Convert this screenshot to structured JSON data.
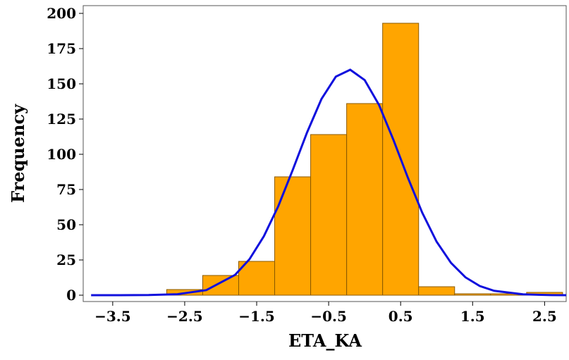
{
  "chart_data": {
    "type": "histogram",
    "xlabel": "ETA_KA",
    "ylabel": "Frequency",
    "bins": [
      -2.75,
      -2.25,
      -1.75,
      -1.25,
      -0.75,
      -0.25,
      0.25,
      0.75,
      1.25,
      1.75,
      2.25,
      2.75
    ],
    "values": [
      4,
      14,
      24,
      84,
      114,
      136,
      193,
      6,
      1,
      1,
      2
    ],
    "color": "#ffa500",
    "edgecolor": "#8a5a00",
    "curve": {
      "color": "#1010dd",
      "x": [
        -3.8,
        -3.4,
        -3.0,
        -2.6,
        -2.2,
        -1.8,
        -1.6,
        -1.4,
        -1.2,
        -1.0,
        -0.8,
        -0.6,
        -0.4,
        -0.2,
        0.0,
        0.2,
        0.4,
        0.6,
        0.8,
        1.0,
        1.2,
        1.4,
        1.6,
        1.8,
        2.2,
        2.6,
        2.8
      ],
      "values": [
        0.0,
        0.01,
        0.09,
        0.7,
        3.6,
        14.4,
        25.5,
        41.8,
        63.2,
        88.8,
        115.5,
        139.2,
        155.1,
        160,
        152.7,
        135,
        110.2,
        83.5,
        58.6,
        38,
        22.9,
        12.7,
        6.5,
        3.1,
        0.6,
        0.07,
        0.02
      ]
    },
    "xlim": [
      -3.91,
      2.8
    ],
    "ylim": [
      -4.5,
      205.5
    ],
    "xticks": [
      {
        "value": -3.5,
        "label": "−3.5"
      },
      {
        "value": -2.5,
        "label": "−2.5"
      },
      {
        "value": -1.5,
        "label": "−1.5"
      },
      {
        "value": -0.5,
        "label": "−0.5"
      },
      0.5,
      1.5,
      2.5
    ],
    "yticks": [
      0,
      25,
      50,
      75,
      100,
      125,
      150,
      175,
      200
    ]
  }
}
